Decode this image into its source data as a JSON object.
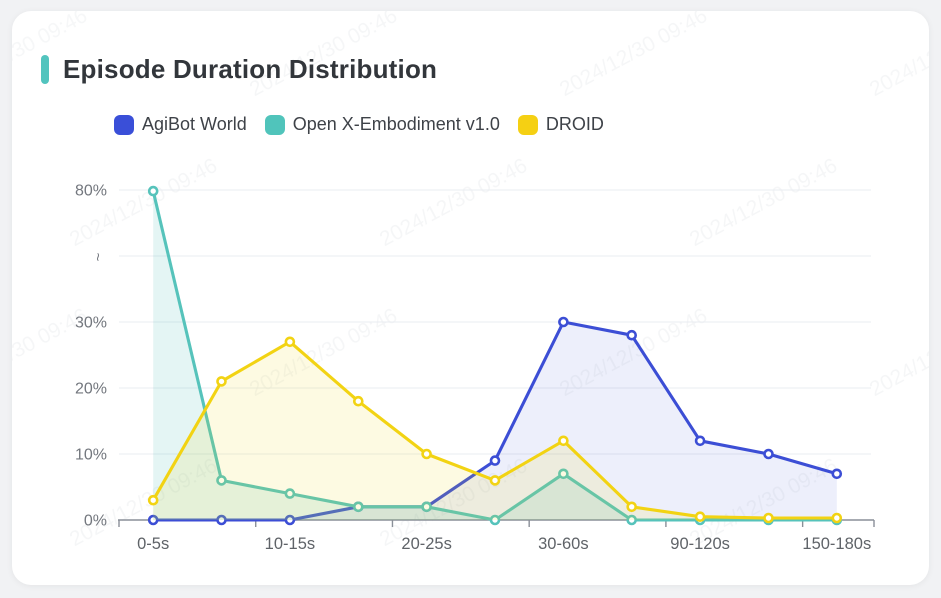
{
  "page": {
    "background": "#F1F2F4",
    "card_background": "#FFFFFF"
  },
  "header": {
    "title": "Episode Duration Distribution",
    "accent_color": "#52C4BE"
  },
  "legend": {
    "items": [
      {
        "label": "AgiBot World",
        "color": "#3A4FD8"
      },
      {
        "label": "Open X-Embodiment v1.0",
        "color": "#50C4BB"
      },
      {
        "label": "DROID",
        "color": "#F5D013"
      }
    ]
  },
  "watermark": {
    "text": "2024/12/30 09:46"
  },
  "chart_data": {
    "type": "line",
    "title": "Episode Duration Distribution",
    "x_labels": [
      "0-5s",
      "10-15s",
      "20-25s",
      "30-60s",
      "90-120s",
      "150-180s"
    ],
    "label_indices": [
      0,
      2,
      4,
      6,
      8,
      10
    ],
    "n_points": 11,
    "y_axis": {
      "tick_labels": [
        "0%",
        "10%",
        "20%",
        "30%",
        "~",
        "80%"
      ],
      "tick_values": [
        0,
        10,
        20,
        30,
        null,
        80
      ],
      "broken": true,
      "break_after": 30,
      "top_value": 80,
      "unit": "%"
    },
    "grid": true,
    "legend_position": "top",
    "series": [
      {
        "name": "AgiBot World",
        "color": "#3C4ED5",
        "fill": "rgba(80,100,220,0.10)",
        "values": [
          0,
          0,
          0,
          2,
          2,
          9,
          30,
          28,
          12,
          10,
          7
        ]
      },
      {
        "name": "Open X-Embodiment v1.0",
        "color": "#56C3BB",
        "fill": "rgba(86,195,187,0.16)",
        "values": [
          79.6,
          6,
          4,
          2,
          2,
          0,
          7,
          0,
          0,
          0,
          0
        ]
      },
      {
        "name": "DROID",
        "color": "#F2D313",
        "fill": "rgba(242,211,19,0.12)",
        "values": [
          3,
          21,
          27,
          18,
          10,
          6,
          12,
          2,
          0.5,
          0.3,
          0.3
        ]
      }
    ]
  }
}
